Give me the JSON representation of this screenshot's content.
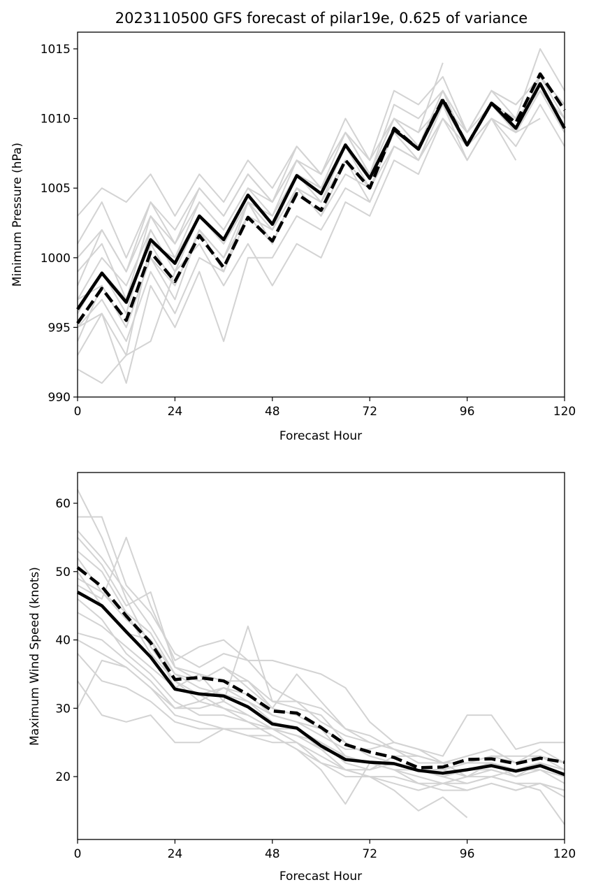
{
  "chart_data": [
    {
      "type": "line",
      "title": "2023110500 GFS forecast of pilar19e, 0.625 of variance",
      "xlabel": "Forecast Hour",
      "ylabel": "Minimum Pressure (hPa)",
      "xlim": [
        0,
        120
      ],
      "ylim": [
        990,
        1016.2
      ],
      "xticks": [
        0,
        24,
        48,
        72,
        96,
        120
      ],
      "yticks": [
        990,
        995,
        1000,
        1005,
        1010,
        1015
      ],
      "grid": false,
      "x": [
        0,
        6,
        12,
        18,
        24,
        30,
        36,
        42,
        48,
        54,
        60,
        66,
        72,
        78,
        84,
        90,
        96,
        102,
        108,
        114,
        120
      ],
      "series": [
        {
          "style": "solid-bold",
          "color": "#000000",
          "values": [
            996.3,
            998.9,
            996.8,
            1001.3,
            999.6,
            1003.0,
            1001.3,
            1004.5,
            1002.4,
            1005.9,
            1004.6,
            1008.1,
            1005.7,
            1009.2,
            1007.8,
            1011.3,
            1008.1,
            1011.1,
            1009.3,
            1012.5,
            1009.3
          ]
        },
        {
          "style": "dashed-bold",
          "color": "#000000",
          "values": [
            995.3,
            997.8,
            995.5,
            1000.4,
            998.3,
            1001.6,
            999.3,
            1002.9,
            1001.2,
            1004.6,
            1003.4,
            1007.0,
            1005.0,
            1009.3,
            1007.8,
            1011.4,
            1008.1,
            1011.1,
            1009.7,
            1013.2,
            1010.6
          ]
        },
        {
          "style": "ensemble",
          "color": "#d3d3d3",
          "values": [
            996,
            999,
            997,
            1001,
            1000,
            1003,
            1001,
            1004,
            1003,
            1006,
            1005,
            1008,
            1006,
            1009,
            1008,
            1011,
            1008,
            1011,
            1009,
            1012,
            1009
          ]
        },
        {
          "style": "ensemble",
          "color": "#d3d3d3",
          "values": [
            998,
            1002,
            999,
            1004,
            1001,
            1005,
            1003,
            1006,
            1004,
            1008,
            1006,
            1010,
            1007,
            1012,
            1011,
            1013,
            1009,
            1012,
            1010,
            1015,
            1012
          ]
        },
        {
          "style": "ensemble",
          "color": "#d3d3d3",
          "values": [
            992,
            991,
            993,
            994,
            999,
            1001,
            998,
            1001,
            998,
            1001,
            1000,
            1004,
            1003,
            1007,
            1006,
            1010,
            1007,
            1010,
            1008,
            1011,
            1008
          ]
        },
        {
          "style": "ensemble",
          "color": "#d3d3d3",
          "values": [
            1003,
            1005,
            1004,
            1006,
            1003,
            1006,
            1004,
            1007,
            1005,
            1008,
            1006,
            1009,
            1007,
            1010,
            1009,
            1011,
            1009,
            1012,
            1011,
            1013,
            1011
          ]
        },
        {
          "style": "ensemble",
          "color": "#d3d3d3",
          "values": [
            993,
            996,
            991,
            998,
            995,
            999,
            994,
            1000,
            1000,
            1003,
            1002,
            1005,
            1004,
            1008,
            1007,
            1010,
            1008,
            1011,
            1009,
            1012,
            1010
          ]
        },
        {
          "style": "ensemble",
          "color": "#d3d3d3",
          "values": [
            1000,
            1002,
            999,
            1003,
            1001,
            1004,
            1002,
            1005,
            1003,
            1007,
            1005,
            1009,
            1006,
            1011,
            1010,
            1012,
            1009,
            1011,
            1010,
            1012,
            1009
          ]
        },
        {
          "style": "ensemble",
          "color": "#d3d3d3",
          "values": [
            995,
            997,
            994,
            999,
            996,
            1000,
            999,
            1003,
            1001,
            1005,
            1004,
            1007,
            1005,
            1008,
            1007,
            1011,
            1007,
            1010,
            1007,
            null,
            null
          ]
        },
        {
          "style": "ensemble",
          "color": "#d3d3d3",
          "values": [
            997,
            1000,
            998,
            1002,
            999,
            1003,
            1001,
            1004,
            1002,
            1006,
            1004,
            1008,
            1005,
            1009,
            1008,
            1011,
            1008,
            1011,
            1009,
            1012,
            null
          ]
        },
        {
          "style": "ensemble",
          "color": "#d3d3d3",
          "values": [
            999,
            1001,
            997,
            1003,
            1000,
            1004,
            1002,
            1005,
            1004,
            1007,
            1006,
            1009,
            1006,
            1010,
            1008,
            1012,
            1009,
            1012,
            1011,
            1013,
            1010
          ]
        },
        {
          "style": "ensemble",
          "color": "#d3d3d3",
          "values": [
            994,
            998,
            995,
            1000,
            997,
            1002,
            1000,
            1003,
            1002,
            1005,
            1004,
            1007,
            1005,
            1009,
            1007,
            1011,
            1008,
            1011,
            1009,
            1013,
            1011
          ]
        },
        {
          "style": "ensemble",
          "color": "#d3d3d3",
          "values": [
            996,
            999,
            996,
            1002,
            999,
            1003,
            1001,
            1004,
            1002,
            1006,
            1005,
            1008,
            1006,
            1010,
            1008,
            1012,
            1008,
            1011,
            1009,
            null,
            null
          ]
        },
        {
          "style": "ensemble",
          "color": "#d3d3d3",
          "values": [
            1001,
            1004,
            1000,
            1004,
            1002,
            1005,
            1003,
            1006,
            1004,
            1007,
            1005,
            1008,
            1006,
            1010,
            1009,
            1014,
            null,
            null,
            null,
            null,
            null
          ]
        },
        {
          "style": "ensemble",
          "color": "#d3d3d3",
          "values": [
            995,
            996,
            993,
            1001,
            998,
            1002,
            999,
            1004,
            1001,
            1005,
            1003,
            1007,
            1004,
            1008,
            1007,
            1011,
            1008,
            1010,
            1009,
            1010,
            null
          ]
        },
        {
          "style": "ensemble",
          "color": "#d3d3d3",
          "values": [
            997,
            998,
            995,
            1000,
            998,
            1002,
            1000,
            1004,
            1001,
            1005,
            1003,
            1006,
            1005,
            1009,
            1008,
            1011,
            1008,
            1010,
            1009,
            1012,
            1010
          ]
        }
      ]
    },
    {
      "type": "line",
      "title": "",
      "xlabel": "Forecast Hour",
      "ylabel": "Maximum Wind Speed (knots)",
      "xlim": [
        0,
        120
      ],
      "ylim": [
        10.8,
        64.5
      ],
      "xticks": [
        0,
        24,
        48,
        72,
        96,
        120
      ],
      "yticks": [
        20,
        30,
        40,
        50,
        60
      ],
      "grid": false,
      "x": [
        0,
        6,
        12,
        18,
        24,
        30,
        36,
        42,
        48,
        54,
        60,
        66,
        72,
        78,
        84,
        90,
        96,
        102,
        108,
        114,
        120
      ],
      "series": [
        {
          "style": "solid-bold",
          "color": "#000000",
          "values": [
            47.0,
            45.0,
            41.2,
            37.5,
            32.8,
            32.1,
            31.8,
            30.2,
            27.7,
            27.1,
            24.5,
            22.5,
            22.1,
            21.9,
            20.9,
            20.5,
            21.0,
            21.6,
            20.8,
            21.6,
            20.3
          ]
        },
        {
          "style": "dashed-bold",
          "color": "#000000",
          "values": [
            50.6,
            47.8,
            43.5,
            39.6,
            34.2,
            34.5,
            34.0,
            32.0,
            29.6,
            29.3,
            27.2,
            24.7,
            23.6,
            22.8,
            21.3,
            21.4,
            22.5,
            22.6,
            21.9,
            22.7,
            22.1
          ]
        },
        {
          "style": "ensemble",
          "color": "#d3d3d3",
          "values": [
            62,
            55,
            46,
            39,
            34,
            32,
            33,
            31,
            29,
            28,
            27,
            23,
            22,
            21,
            20,
            19,
            19,
            20,
            19,
            18,
            13
          ]
        },
        {
          "style": "ensemble",
          "color": "#d3d3d3",
          "values": [
            58,
            58,
            48,
            44,
            38,
            36,
            38,
            37,
            37,
            36,
            35,
            33,
            28,
            25,
            24,
            23,
            29,
            29,
            24,
            25,
            25
          ]
        },
        {
          "style": "ensemble",
          "color": "#d3d3d3",
          "values": [
            30,
            37,
            36,
            33,
            30,
            31,
            30,
            28,
            27,
            26,
            24,
            23,
            22,
            22,
            21,
            21,
            20,
            22,
            21,
            22,
            20
          ]
        },
        {
          "style": "ensemble",
          "color": "#d3d3d3",
          "values": [
            34,
            29,
            28,
            29,
            25,
            25,
            27,
            27,
            27,
            25,
            22,
            21,
            20,
            19,
            18,
            19,
            18,
            19,
            18,
            19,
            17
          ]
        },
        {
          "style": "ensemble",
          "color": "#d3d3d3",
          "values": [
            38,
            34,
            33,
            31,
            28,
            27,
            27,
            26,
            26,
            24,
            22,
            20,
            20,
            18,
            15,
            17,
            14,
            null,
            null,
            null,
            null
          ]
        },
        {
          "style": "ensemble",
          "color": "#d3d3d3",
          "values": [
            48,
            46,
            55,
            45,
            37,
            39,
            40,
            37,
            33,
            31,
            30,
            27,
            26,
            24,
            22,
            22,
            23,
            24,
            22,
            24,
            22
          ]
        },
        {
          "style": "ensemble",
          "color": "#d3d3d3",
          "values": [
            50,
            45,
            41,
            40,
            33,
            35,
            31,
            42,
            31,
            30,
            29,
            25,
            23,
            22,
            21,
            20,
            21,
            21,
            20,
            21,
            19
          ]
        },
        {
          "style": "ensemble",
          "color": "#d3d3d3",
          "values": [
            55,
            51,
            45,
            47,
            36,
            34,
            36,
            34,
            30,
            35,
            31,
            27,
            25,
            24,
            23,
            22,
            23,
            24,
            22,
            23,
            21
          ]
        },
        {
          "style": "ensemble",
          "color": "#d3d3d3",
          "values": [
            44,
            42,
            39,
            36,
            33,
            32,
            30,
            29,
            27,
            26,
            25,
            22,
            21,
            22,
            21,
            20,
            21,
            22,
            20,
            22,
            20
          ]
        },
        {
          "style": "ensemble",
          "color": "#d3d3d3",
          "values": [
            46,
            43,
            38,
            35,
            31,
            29,
            29,
            28,
            26,
            24,
            21,
            16,
            22,
            21,
            19,
            19,
            20,
            20,
            21,
            21,
            20
          ]
        },
        {
          "style": "ensemble",
          "color": "#d3d3d3",
          "values": [
            52,
            47,
            43,
            40,
            35,
            33,
            32,
            31,
            28,
            27,
            25,
            23,
            22,
            21,
            21,
            21,
            22,
            22,
            21,
            22,
            21
          ]
        },
        {
          "style": "ensemble",
          "color": "#d3d3d3",
          "values": [
            41,
            40,
            37,
            34,
            30,
            30,
            31,
            29,
            27,
            27,
            24,
            21,
            21,
            23,
            23,
            22,
            22,
            23,
            23,
            23,
            22
          ]
        },
        {
          "style": "ensemble",
          "color": "#d3d3d3",
          "values": [
            49,
            47,
            44,
            38,
            34,
            31,
            33,
            32,
            29,
            28,
            26,
            24,
            24,
            25,
            24,
            22,
            20,
            21,
            20,
            21,
            null
          ]
        },
        {
          "style": "ensemble",
          "color": "#d3d3d3",
          "values": [
            53,
            50,
            44,
            41,
            35,
            34,
            36,
            33,
            30,
            29,
            27,
            25,
            23,
            22,
            21,
            20,
            19,
            20,
            19,
            19,
            18
          ]
        },
        {
          "style": "ensemble",
          "color": "#d3d3d3",
          "values": [
            40,
            38,
            36,
            33,
            29,
            28,
            27,
            26,
            25,
            25,
            23,
            21,
            20,
            20,
            19,
            18,
            18,
            19,
            18,
            19,
            18
          ]
        },
        {
          "style": "ensemble",
          "color": "#d3d3d3",
          "values": [
            56,
            52,
            47,
            42,
            36,
            35,
            34,
            34,
            31,
            31,
            28,
            26,
            25,
            24,
            23,
            22,
            22,
            23,
            22,
            23,
            22
          ]
        }
      ]
    }
  ]
}
